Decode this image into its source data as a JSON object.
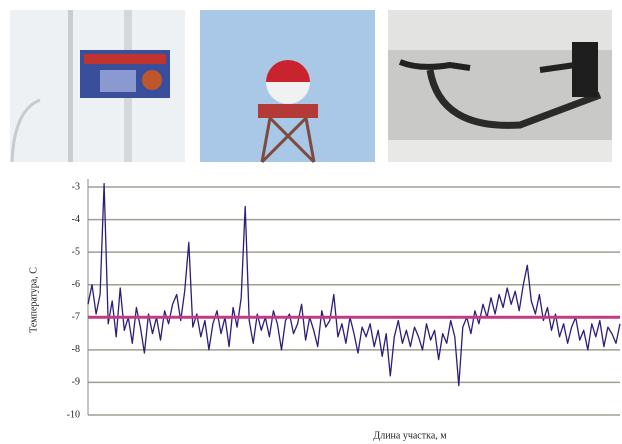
{
  "chart_data": {
    "type": "line",
    "y_label": "Температура, С",
    "x_label": "Длина участка, м",
    "ylim": [
      -10,
      -3
    ],
    "yticks": [
      -3,
      -4,
      -5,
      -6,
      -7,
      -8,
      -9,
      -10
    ],
    "grid": true,
    "grid_color": "#a39d92",
    "reference_value": -7,
    "reference_color": "#c23a86",
    "series": [
      {
        "color": "#2d1c78",
        "values": [
          -6.6,
          -6.0,
          -6.9,
          -6.3,
          -2.9,
          -7.2,
          -6.5,
          -7.6,
          -6.1,
          -7.4,
          -7.0,
          -7.8,
          -6.7,
          -7.3,
          -8.1,
          -6.9,
          -7.5,
          -7.0,
          -7.7,
          -6.8,
          -7.2,
          -6.6,
          -6.3,
          -7.1,
          -6.2,
          -4.7,
          -7.3,
          -6.9,
          -7.6,
          -7.1,
          -8.0,
          -7.2,
          -6.8,
          -7.5,
          -7.0,
          -7.9,
          -6.7,
          -7.3,
          -6.4,
          -3.6,
          -7.1,
          -7.8,
          -6.9,
          -7.4,
          -7.0,
          -7.6,
          -6.8,
          -7.2,
          -8.0,
          -7.1,
          -6.9,
          -7.5,
          -7.2,
          -6.6,
          -7.7,
          -7.0,
          -7.4,
          -7.9,
          -6.8,
          -7.3,
          -7.1,
          -6.3,
          -7.6,
          -7.2,
          -7.8,
          -7.0,
          -7.5,
          -8.1,
          -7.3,
          -7.6,
          -7.2,
          -7.9,
          -7.4,
          -8.2,
          -7.5,
          -8.8,
          -7.6,
          -7.1,
          -7.8,
          -7.4,
          -7.9,
          -7.3,
          -7.6,
          -8.0,
          -7.2,
          -7.7,
          -7.4,
          -8.3,
          -7.5,
          -7.8,
          -7.1,
          -7.6,
          -9.1,
          -7.3,
          -7.0,
          -7.5,
          -6.8,
          -7.2,
          -6.6,
          -7.0,
          -6.4,
          -6.9,
          -6.3,
          -6.7,
          -6.1,
          -6.6,
          -6.2,
          -6.8,
          -6.0,
          -5.4,
          -6.5,
          -6.9,
          -6.3,
          -7.1,
          -6.7,
          -7.4,
          -6.9,
          -7.6,
          -7.2,
          -7.8,
          -7.3,
          -7.0,
          -7.7,
          -7.4,
          -8.0,
          -7.2,
          -7.6,
          -7.1,
          -7.9,
          -7.3,
          -7.5,
          -7.8,
          -7.2
        ]
      }
    ]
  }
}
